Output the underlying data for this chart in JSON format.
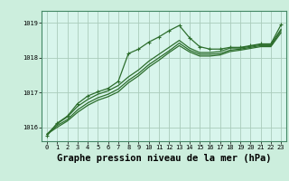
{
  "background_color": "#cceedd",
  "plot_bg_color": "#d8f5ec",
  "grid_color": "#aaccbb",
  "line_color": "#2d6e2d",
  "xlabel": "Graphe pression niveau de la mer (hPa)",
  "xlabel_fontsize": 7.5,
  "ylim": [
    1015.6,
    1019.35
  ],
  "xlim": [
    -0.5,
    23.5
  ],
  "yticks": [
    1016,
    1017,
    1018,
    1019
  ],
  "xticks": [
    0,
    1,
    2,
    3,
    4,
    5,
    6,
    7,
    8,
    9,
    10,
    11,
    12,
    13,
    14,
    15,
    16,
    17,
    18,
    19,
    20,
    21,
    22,
    23
  ],
  "series_plain": [
    {
      "x": [
        0,
        1,
        2,
        3,
        4,
        5,
        6,
        7,
        8,
        9,
        10,
        11,
        12,
        13,
        14,
        15,
        16,
        17,
        18,
        19,
        20,
        21,
        22,
        23
      ],
      "y": [
        1015.8,
        1016.1,
        1016.3,
        1016.6,
        1016.8,
        1016.95,
        1017.05,
        1017.2,
        1017.45,
        1017.65,
        1017.9,
        1018.1,
        1018.3,
        1018.5,
        1018.28,
        1018.15,
        1018.15,
        1018.18,
        1018.28,
        1018.28,
        1018.33,
        1018.38,
        1018.38,
        1018.82
      ],
      "linewidth": 0.9
    },
    {
      "x": [
        0,
        1,
        2,
        3,
        4,
        5,
        6,
        7,
        8,
        9,
        10,
        11,
        12,
        13,
        14,
        15,
        16,
        17,
        18,
        19,
        20,
        21,
        22,
        23
      ],
      "y": [
        1015.8,
        1016.05,
        1016.22,
        1016.5,
        1016.7,
        1016.85,
        1016.95,
        1017.1,
        1017.35,
        1017.55,
        1017.8,
        1018.0,
        1018.2,
        1018.42,
        1018.22,
        1018.1,
        1018.1,
        1018.12,
        1018.22,
        1018.25,
        1018.3,
        1018.35,
        1018.35,
        1018.78
      ],
      "linewidth": 0.9
    },
    {
      "x": [
        0,
        1,
        2,
        3,
        4,
        5,
        6,
        7,
        8,
        9,
        10,
        11,
        12,
        13,
        14,
        15,
        16,
        17,
        18,
        19,
        20,
        21,
        22,
        23
      ],
      "y": [
        1015.8,
        1016.0,
        1016.18,
        1016.43,
        1016.63,
        1016.78,
        1016.88,
        1017.02,
        1017.28,
        1017.48,
        1017.73,
        1017.93,
        1018.15,
        1018.35,
        1018.17,
        1018.05,
        1018.05,
        1018.08,
        1018.18,
        1018.22,
        1018.27,
        1018.32,
        1018.32,
        1018.72
      ],
      "linewidth": 0.9
    }
  ],
  "series_marker": {
    "x": [
      0,
      1,
      2,
      3,
      4,
      5,
      6,
      7,
      8,
      9,
      10,
      11,
      12,
      13,
      14,
      15,
      16,
      17,
      18,
      19,
      20,
      21,
      22,
      23
    ],
    "y": [
      1015.75,
      1016.12,
      1016.32,
      1016.68,
      1016.9,
      1017.02,
      1017.12,
      1017.32,
      1018.12,
      1018.25,
      1018.45,
      1018.6,
      1018.78,
      1018.93,
      1018.58,
      1018.32,
      1018.25,
      1018.25,
      1018.3,
      1018.3,
      1018.35,
      1018.4,
      1018.4,
      1018.95
    ],
    "marker": "+",
    "markersize": 3.5,
    "linewidth": 0.9
  }
}
